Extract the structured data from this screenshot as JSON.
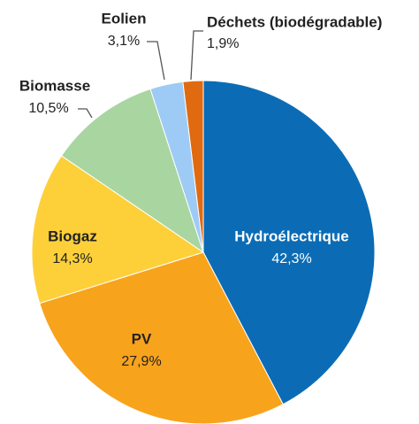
{
  "chart_data": {
    "type": "pie",
    "categories": [
      "Hydroélectrique",
      "PV",
      "Biogaz",
      "Biomasse",
      "Eolien",
      "Déchets (biodégradable)"
    ],
    "values": [
      42.3,
      27.9,
      14.3,
      10.5,
      3.1,
      1.9
    ],
    "value_labels": [
      "42,3%",
      "27,9%",
      "14,3%",
      "10,5%",
      "3,1%",
      "1,9%"
    ],
    "colors": [
      "#0b6cb5",
      "#f8a31c",
      "#fdd03a",
      "#a8d5a0",
      "#9ecbf5",
      "#e06a10"
    ]
  }
}
